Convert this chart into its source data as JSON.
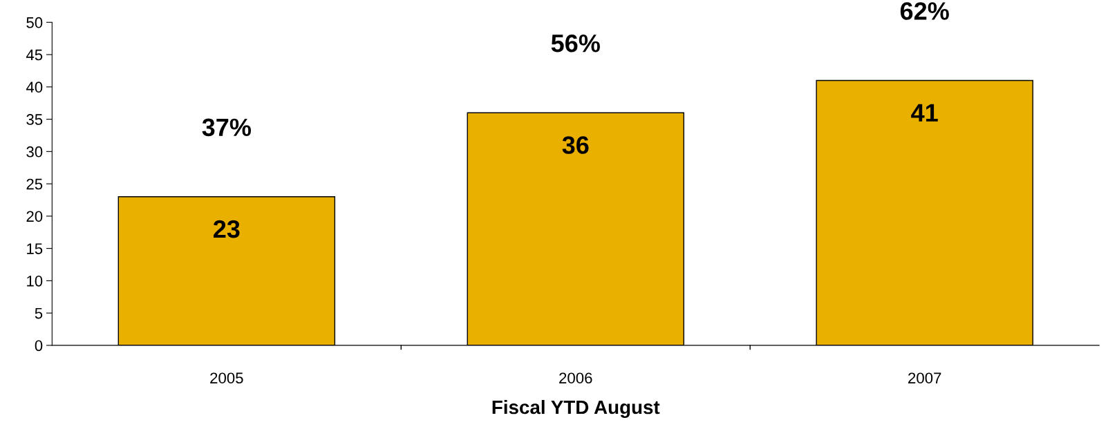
{
  "chart_data": {
    "type": "bar",
    "xlabel": "Fiscal YTD August",
    "categories": [
      "2005",
      "2006",
      "2007"
    ],
    "values": [
      23,
      36,
      41
    ],
    "color": "#e9b000",
    "ylim": [
      0,
      50
    ],
    "yticks": [
      0,
      5,
      10,
      15,
      20,
      25,
      30,
      35,
      40,
      45,
      50
    ],
    "grid": false,
    "data_labels": true,
    "annotations": [
      {
        "text": "37%",
        "x": "2005",
        "y": 23
      },
      {
        "text": "56%",
        "x": "2006",
        "y": 36
      },
      {
        "text": "62%",
        "x": "2007",
        "y": 41
      }
    ]
  }
}
